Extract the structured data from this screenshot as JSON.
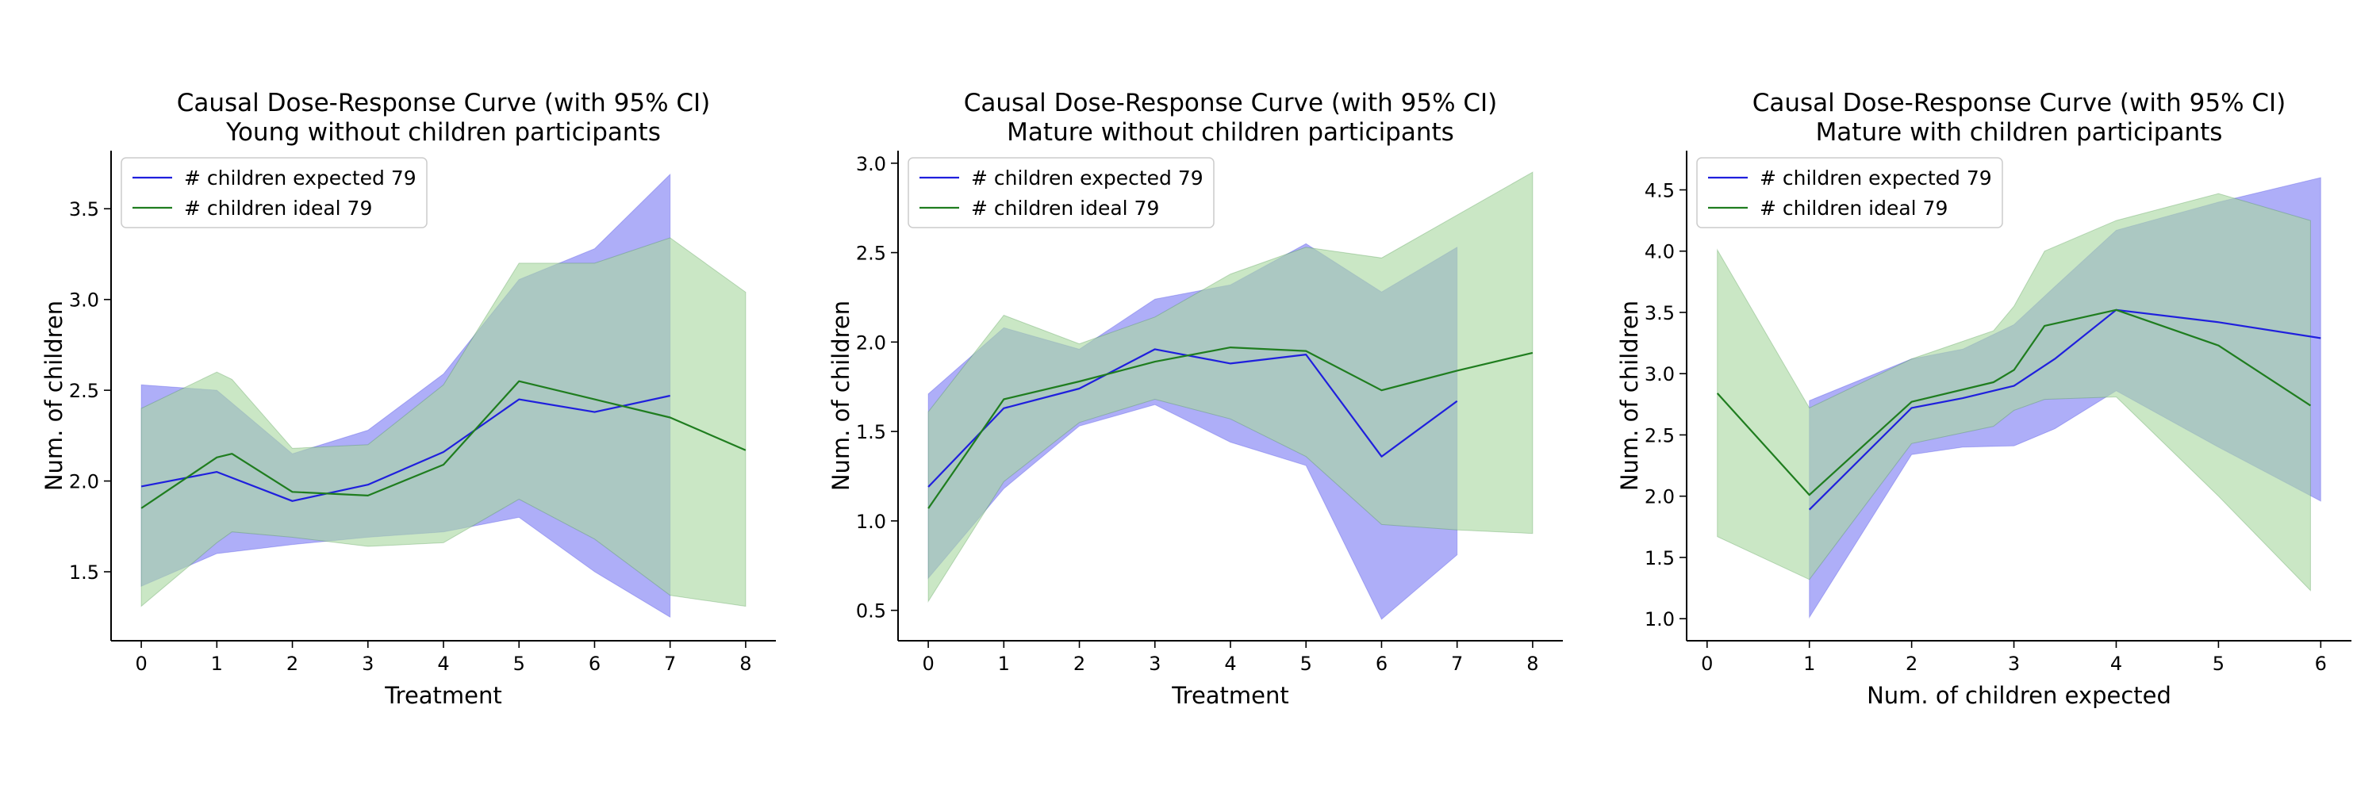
{
  "colors": {
    "expected": "#1f1fdd",
    "expected_fill": "#aaaaf8",
    "ideal": "#1f7d1f",
    "ideal_fill": "#a9d8a2",
    "overlap": "#7b9fad"
  },
  "chart_data": [
    {
      "type": "line",
      "title": "Causal Dose-Response Curve (with 95% CI)",
      "subtitle": "Young without children participants",
      "xlabel": "Treatment",
      "ylabel": "Num. of children",
      "xlim": [
        -0.4,
        8.4
      ],
      "ylim": [
        1.12,
        3.82
      ],
      "xticks": [
        0,
        1,
        2,
        3,
        4,
        5,
        6,
        7,
        8
      ],
      "yticks": [
        1.5,
        2.0,
        2.5,
        3.0,
        3.5
      ],
      "ytick_labels": [
        "1.5",
        "2.0",
        "2.5",
        "3.0",
        "3.5"
      ],
      "legend_position": "upper left",
      "grid": false,
      "series": [
        {
          "name": "# children expected 79",
          "color_key": "expected",
          "x": [
            0,
            1,
            2,
            3,
            4,
            5,
            6,
            7
          ],
          "y": [
            1.97,
            2.05,
            1.89,
            1.98,
            2.16,
            2.45,
            2.38,
            2.47
          ],
          "ci_x": [
            0,
            1,
            2,
            3,
            4,
            5,
            6,
            7
          ],
          "ci_lower": [
            1.42,
            1.6,
            1.65,
            1.69,
            1.72,
            1.8,
            1.5,
            1.25
          ],
          "ci_upper": [
            2.53,
            2.5,
            2.15,
            2.28,
            2.59,
            3.11,
            3.28,
            3.69
          ]
        },
        {
          "name": "# children ideal 79",
          "color_key": "ideal",
          "x": [
            0,
            1,
            1.2,
            2,
            3,
            4,
            5,
            6,
            7,
            8
          ],
          "y": [
            1.85,
            2.13,
            2.15,
            1.94,
            1.92,
            2.09,
            2.55,
            2.45,
            2.35,
            2.17
          ],
          "ci_x": [
            0,
            1,
            1.2,
            2,
            3,
            4,
            5,
            6,
            7,
            8
          ],
          "ci_lower": [
            1.31,
            1.66,
            1.72,
            1.69,
            1.64,
            1.66,
            1.9,
            1.68,
            1.37,
            1.31
          ],
          "ci_upper": [
            2.4,
            2.6,
            2.56,
            2.18,
            2.2,
            2.53,
            3.2,
            3.2,
            3.34,
            3.04
          ]
        }
      ]
    },
    {
      "type": "line",
      "title": "Causal Dose-Response Curve (with 95% CI)",
      "subtitle": "Mature without children participants",
      "xlabel": "Treatment",
      "ylabel": "Num. of children",
      "xlim": [
        -0.4,
        8.4
      ],
      "ylim": [
        0.33,
        3.07
      ],
      "xticks": [
        0,
        1,
        2,
        3,
        4,
        5,
        6,
        7,
        8
      ],
      "yticks": [
        0.5,
        1.0,
        1.5,
        2.0,
        2.5,
        3.0
      ],
      "ytick_labels": [
        "0.5",
        "1.0",
        "1.5",
        "2.0",
        "2.5",
        "3.0"
      ],
      "legend_position": "upper left",
      "grid": false,
      "series": [
        {
          "name": "# children expected 79",
          "color_key": "expected",
          "x": [
            0,
            1,
            2,
            3,
            4,
            5,
            6,
            7
          ],
          "y": [
            1.19,
            1.63,
            1.74,
            1.96,
            1.88,
            1.93,
            1.36,
            1.67
          ],
          "ci_x": [
            0,
            1,
            2,
            3,
            4,
            5,
            6,
            7
          ],
          "ci_lower": [
            0.68,
            1.18,
            1.53,
            1.65,
            1.44,
            1.31,
            0.45,
            0.81
          ],
          "ci_upper": [
            1.71,
            2.08,
            1.96,
            2.24,
            2.32,
            2.55,
            2.28,
            2.53
          ]
        },
        {
          "name": "# children ideal 79",
          "color_key": "ideal",
          "x": [
            0,
            1,
            2,
            3,
            4,
            5,
            6,
            7,
            8
          ],
          "y": [
            1.07,
            1.68,
            1.78,
            1.89,
            1.97,
            1.95,
            1.73,
            1.84,
            1.94
          ],
          "ci_x": [
            0,
            1,
            2,
            3,
            4,
            5,
            6,
            7,
            8
          ],
          "ci_lower": [
            0.55,
            1.22,
            1.55,
            1.68,
            1.57,
            1.36,
            0.98,
            0.95,
            0.93
          ],
          "ci_upper": [
            1.61,
            2.15,
            1.99,
            2.14,
            2.38,
            2.53,
            2.47,
            2.71,
            2.95
          ]
        }
      ]
    },
    {
      "type": "line",
      "title": "Causal Dose-Response Curve (with 95% CI)",
      "subtitle": "Mature with children participants",
      "xlabel": "Num. of children expected",
      "ylabel": "Num. of children",
      "xlim": [
        -0.2,
        6.3
      ],
      "ylim": [
        0.82,
        4.82
      ],
      "xticks": [
        0,
        1,
        2,
        3,
        4,
        5,
        6
      ],
      "yticks": [
        1.0,
        1.5,
        2.0,
        2.5,
        3.0,
        3.5,
        4.0,
        4.5
      ],
      "ytick_labels": [
        "1.0",
        "1.5",
        "2.0",
        "2.5",
        "3.0",
        "3.5",
        "4.0",
        "4.5"
      ],
      "legend_position": "upper left",
      "grid": false,
      "series": [
        {
          "name": "# children expected 79",
          "color_key": "expected",
          "x": [
            1,
            2,
            2.5,
            3,
            3.4,
            4,
            5,
            6
          ],
          "y": [
            1.89,
            2.72,
            2.8,
            2.9,
            3.12,
            3.52,
            3.42,
            3.29
          ],
          "ci_x": [
            1,
            2,
            2.5,
            3,
            3.4,
            4,
            5,
            6
          ],
          "ci_lower": [
            1.01,
            2.34,
            2.4,
            2.41,
            2.55,
            2.86,
            2.4,
            1.96
          ],
          "ci_upper": [
            2.78,
            3.12,
            3.2,
            3.4,
            3.71,
            4.17,
            4.4,
            4.6
          ]
        },
        {
          "name": "# children ideal 79",
          "color_key": "ideal",
          "x": [
            0.1,
            1,
            2,
            2.8,
            3,
            3.3,
            4,
            5,
            5.9
          ],
          "y": [
            2.84,
            2.01,
            2.77,
            2.93,
            3.03,
            3.39,
            3.52,
            3.23,
            2.74
          ],
          "ci_x": [
            0.1,
            1,
            2,
            2.8,
            3,
            3.3,
            4,
            5,
            5.9
          ],
          "ci_lower": [
            1.67,
            1.32,
            2.43,
            2.57,
            2.7,
            2.79,
            2.81,
            2.0,
            1.23
          ],
          "ci_upper": [
            4.01,
            2.72,
            3.12,
            3.35,
            3.55,
            4.0,
            4.25,
            4.47,
            4.25
          ]
        }
      ]
    }
  ]
}
